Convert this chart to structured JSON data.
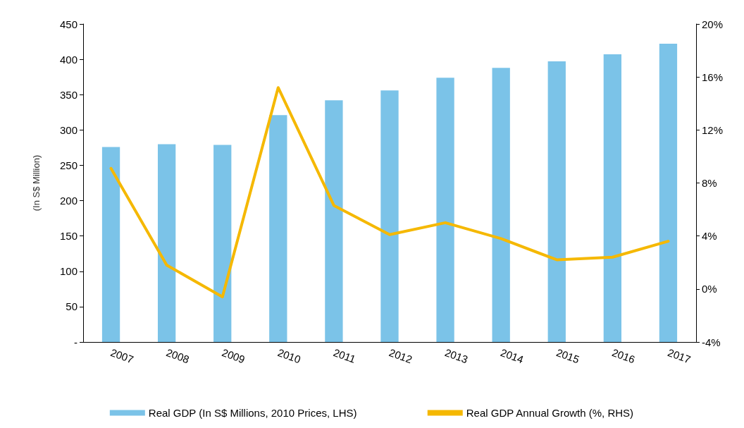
{
  "chart_data": {
    "type": "bar",
    "ylabel": "(In S$ Million)",
    "categories": [
      "2007",
      "2008",
      "2009",
      "2010",
      "2011",
      "2012",
      "2013",
      "2014",
      "2015",
      "2016",
      "2017"
    ],
    "series": [
      {
        "name": "Real GDP (In S$ Millions, 2010 Prices, LHS)",
        "color": "#7bc3e8",
        "values": [
          276,
          280,
          279,
          321,
          342,
          356,
          374,
          388,
          397,
          407,
          422
        ]
      },
      {
        "name": "Real GDP Annual Growth (%, RHS)",
        "type": "line",
        "axis": "y2",
        "color": "#f5b800",
        "values": [
          9.1,
          1.8,
          -0.6,
          15.2,
          6.3,
          4.1,
          5.0,
          3.8,
          2.2,
          2.4,
          3.6
        ]
      }
    ],
    "ylim": [
      0,
      450
    ],
    "yticks": [
      {
        "value": 0,
        "label": "-"
      },
      50,
      100,
      150,
      200,
      250,
      300,
      350,
      400,
      450
    ],
    "y2lim": [
      -4,
      20
    ],
    "y2ticks": [
      {
        "value": -4,
        "label": "-4%"
      },
      {
        "value": 0,
        "label": "0%"
      },
      {
        "value": 4,
        "label": "4%"
      },
      {
        "value": 8,
        "label": "8%"
      },
      {
        "value": 12,
        "label": "12%"
      },
      {
        "value": 16,
        "label": "16%"
      },
      {
        "value": 20,
        "label": "20%"
      }
    ],
    "grid": false,
    "legend": "bottom",
    "marker": "none",
    "line_style": "solid"
  }
}
